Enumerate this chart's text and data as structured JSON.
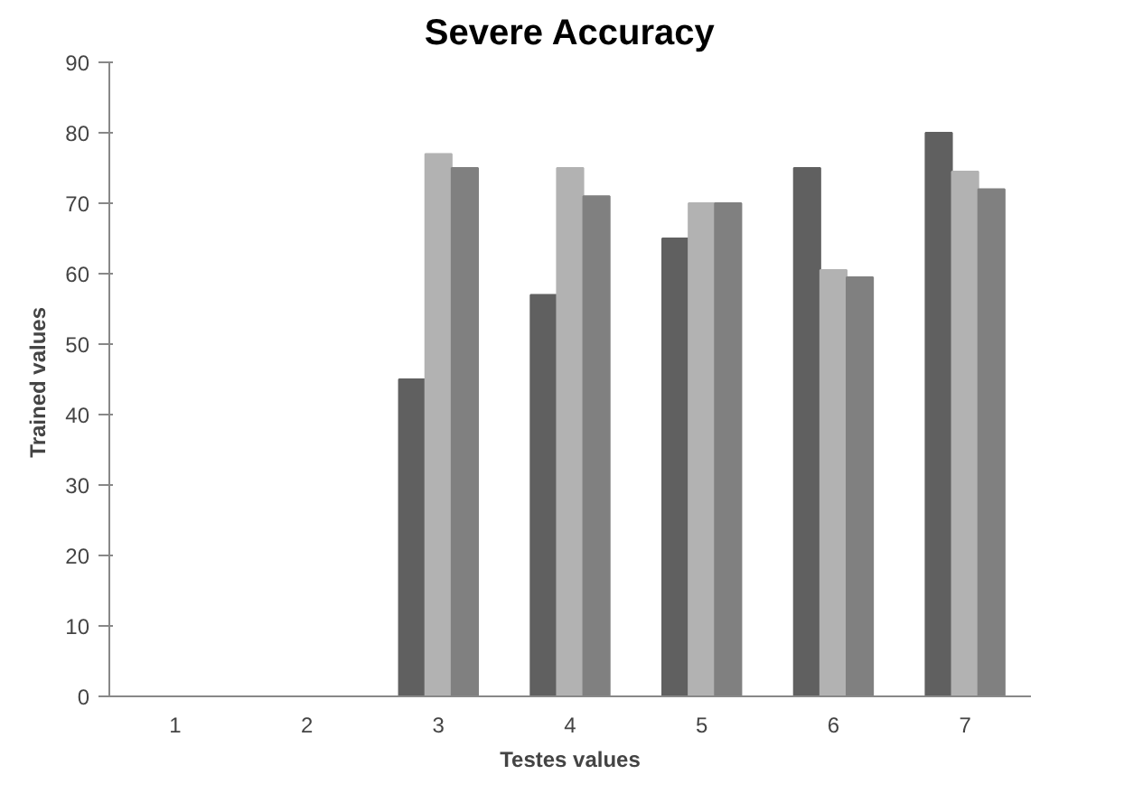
{
  "chart_data": {
    "type": "bar",
    "title": "Severe Accuracy",
    "xlabel": "Testes values",
    "ylabel": "Trained  values",
    "categories": [
      "1",
      "2",
      "3",
      "4",
      "5",
      "6",
      "7"
    ],
    "series": [
      {
        "color": "#606060",
        "values": [
          null,
          null,
          45,
          57,
          65,
          75,
          80
        ]
      },
      {
        "color": "#b2b2b2",
        "values": [
          null,
          null,
          77,
          75,
          70,
          60.5,
          74.5
        ]
      },
      {
        "color": "#808080",
        "values": [
          null,
          null,
          75,
          71,
          70,
          59.5,
          72
        ]
      }
    ],
    "ylim": [
      0,
      90
    ],
    "yticks": [
      0,
      10,
      20,
      30,
      40,
      50,
      60,
      70,
      80,
      90
    ],
    "grid": false
  }
}
